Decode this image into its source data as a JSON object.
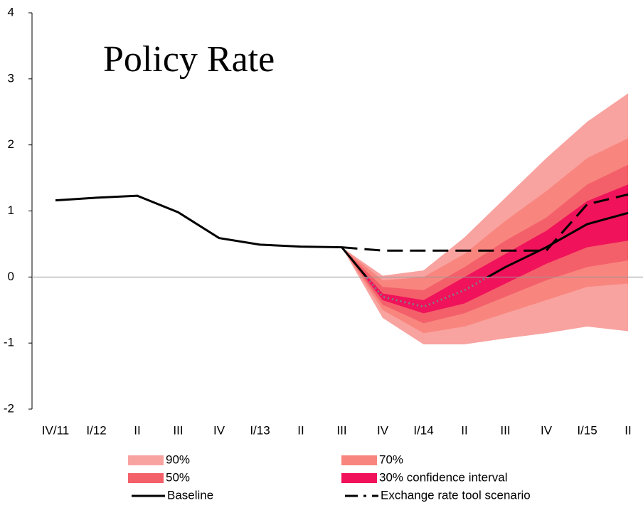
{
  "chart_data": {
    "type": "fan",
    "title": "Policy Rate",
    "categories": [
      "IV/11",
      "I/12",
      "II",
      "III",
      "IV",
      "I/13",
      "II",
      "III",
      "IV",
      "I/14",
      "II",
      "III",
      "IV",
      "I/15",
      "II"
    ],
    "ylim": [
      -2,
      4
    ],
    "yticks": [
      -2,
      -1,
      0,
      1,
      2,
      3,
      4
    ],
    "bands": [
      {
        "name": "90%",
        "color": "#f9a3a0",
        "upper": [
          null,
          null,
          null,
          null,
          null,
          null,
          null,
          0.45,
          0.02,
          0.1,
          0.6,
          1.2,
          1.8,
          2.35,
          2.78
        ],
        "lower": [
          null,
          null,
          null,
          null,
          null,
          null,
          null,
          0.45,
          -0.62,
          -1.02,
          -1.02,
          -0.93,
          -0.85,
          -0.75,
          -0.82
        ]
      },
      {
        "name": "70%",
        "color": "#f8867f",
        "upper": [
          null,
          null,
          null,
          null,
          null,
          null,
          null,
          0.45,
          -0.05,
          0.0,
          0.35,
          0.85,
          1.3,
          1.8,
          2.1
        ],
        "lower": [
          null,
          null,
          null,
          null,
          null,
          null,
          null,
          0.45,
          -0.5,
          -0.85,
          -0.75,
          -0.55,
          -0.35,
          -0.15,
          -0.1
        ]
      },
      {
        "name": "50%",
        "color": "#f4606a",
        "upper": [
          null,
          null,
          null,
          null,
          null,
          null,
          null,
          0.45,
          -0.15,
          -0.2,
          0.15,
          0.55,
          0.9,
          1.4,
          1.7
        ],
        "lower": [
          null,
          null,
          null,
          null,
          null,
          null,
          null,
          0.45,
          -0.42,
          -0.7,
          -0.55,
          -0.3,
          -0.05,
          0.15,
          0.25
        ]
      },
      {
        "name": "30% confidence interval",
        "color": "#f0125a",
        "upper": [
          null,
          null,
          null,
          null,
          null,
          null,
          null,
          0.45,
          -0.25,
          -0.35,
          0.0,
          0.35,
          0.7,
          1.15,
          1.4
        ],
        "lower": [
          null,
          null,
          null,
          null,
          null,
          null,
          null,
          0.45,
          -0.35,
          -0.55,
          -0.4,
          -0.1,
          0.2,
          0.45,
          0.55
        ]
      }
    ],
    "series": [
      {
        "name": "Baseline",
        "color": "#000000",
        "style": "solid",
        "values": [
          1.16,
          1.2,
          1.23,
          0.98,
          0.59,
          0.49,
          0.46,
          0.45,
          -0.3,
          -0.45,
          -0.2,
          0.15,
          0.45,
          0.8,
          0.97
        ]
      },
      {
        "name": "Exchange rate tool scenario",
        "color": "#000000",
        "style": "dashed",
        "values": [
          null,
          null,
          null,
          null,
          null,
          null,
          null,
          0.45,
          0.4,
          0.4,
          0.4,
          0.4,
          0.4,
          1.1,
          1.25
        ]
      }
    ]
  }
}
